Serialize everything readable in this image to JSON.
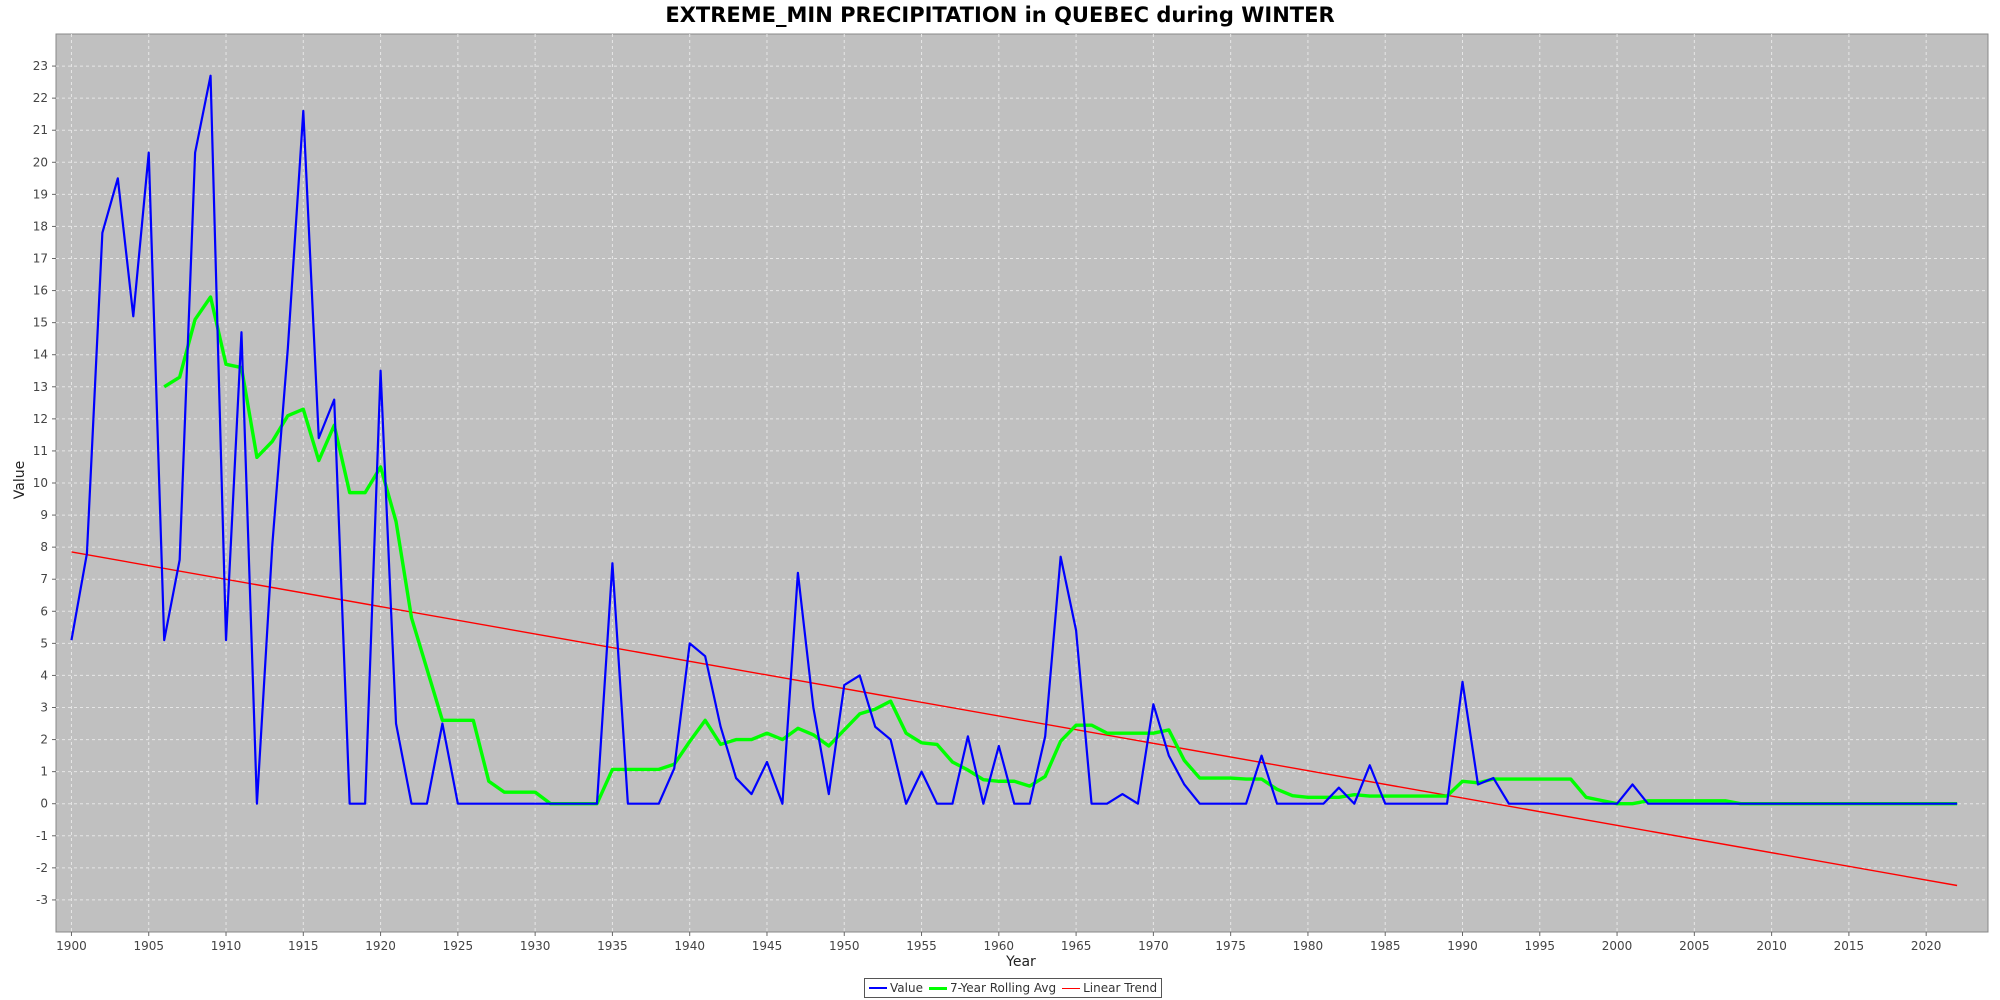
{
  "chart_data": {
    "type": "line",
    "title": "EXTREME_MIN PRECIPITATION in QUEBEC during WINTER",
    "xlabel": "Year",
    "ylabel": "Value",
    "xlim": [
      1899,
      2024
    ],
    "ylim": [
      -4,
      24
    ],
    "x_ticks": [
      1900,
      1905,
      1910,
      1915,
      1920,
      1925,
      1930,
      1935,
      1940,
      1945,
      1950,
      1955,
      1960,
      1965,
      1970,
      1975,
      1980,
      1985,
      1990,
      1995,
      2000,
      2005,
      2010,
      2015,
      2020
    ],
    "y_ticks": [
      -3,
      -2,
      -1,
      0,
      1,
      2,
      3,
      4,
      5,
      6,
      7,
      8,
      9,
      10,
      11,
      12,
      13,
      14,
      15,
      16,
      17,
      18,
      19,
      20,
      21,
      22,
      23
    ],
    "grid": true,
    "legend_position": "bottom-center",
    "background_color": "#c0c0c0",
    "series": [
      {
        "name": "Value",
        "color": "#0000ff",
        "x_start": 1900,
        "values": [
          5.1,
          7.8,
          17.8,
          19.5,
          15.2,
          20.3,
          5.1,
          7.6,
          20.3,
          22.7,
          5.1,
          14.7,
          0,
          8.1,
          14.2,
          21.6,
          11.4,
          12.6,
          0,
          0,
          13.5,
          2.5,
          0,
          0,
          2.5,
          0,
          0,
          0,
          0,
          0,
          0,
          0,
          0,
          0,
          0,
          7.5,
          0,
          0,
          0,
          1.1,
          5.0,
          4.6,
          2.4,
          0.8,
          0.3,
          1.3,
          0,
          7.2,
          3.0,
          0.3,
          3.7,
          4.0,
          2.4,
          2.0,
          0,
          1.0,
          0,
          0,
          2.1,
          0,
          1.8,
          0,
          0,
          2.1,
          7.7,
          5.4,
          0,
          0,
          0.3,
          0,
          3.1,
          1.5,
          0.6,
          0,
          0,
          0,
          0,
          1.5,
          0,
          0,
          0,
          0,
          0.5,
          0,
          1.2,
          0,
          0,
          0,
          0,
          0,
          3.8,
          0.6,
          0.8,
          0,
          0,
          0,
          0,
          0,
          0,
          0,
          0,
          0.6,
          0,
          0,
          0,
          0,
          0,
          0,
          0,
          0,
          0,
          0,
          0,
          0,
          0,
          0,
          0,
          0,
          0,
          0,
          0,
          0,
          0
        ]
      },
      {
        "name": "7-Year Rolling Avg",
        "color": "#00ff00",
        "x_start": 1906,
        "values": [
          13.0,
          13.3,
          15.1,
          15.8,
          13.7,
          13.6,
          10.8,
          11.3,
          12.1,
          12.3,
          10.7,
          11.8,
          9.7,
          9.7,
          10.5,
          8.8,
          5.8,
          4.2,
          2.6,
          2.6,
          2.6,
          0.7,
          0.36,
          0.36,
          0.36,
          0,
          0,
          0,
          0,
          1.07,
          1.07,
          1.07,
          1.07,
          1.23,
          1.94,
          2.6,
          1.85,
          2.0,
          2.0,
          2.2,
          2.0,
          2.35,
          2.15,
          1.8,
          2.3,
          2.8,
          2.95,
          3.2,
          2.2,
          1.9,
          1.85,
          1.3,
          1.05,
          0.75,
          0.7,
          0.7,
          0.55,
          0.85,
          1.95,
          2.45,
          2.45,
          2.2,
          2.2,
          2.2,
          2.2,
          2.3,
          1.35,
          0.8,
          0.8,
          0.8,
          0.77,
          0.77,
          0.45,
          0.25,
          0.2,
          0.2,
          0.2,
          0.28,
          0.24,
          0.24,
          0.24,
          0.24,
          0.24,
          0.24,
          0.7,
          0.65,
          0.77,
          0.77,
          0.77,
          0.77,
          0.77,
          0.77,
          0.2,
          0.1,
          0,
          0,
          0.09,
          0.09,
          0.09,
          0.09,
          0.09,
          0.09,
          0,
          0,
          0,
          0,
          0,
          0,
          0,
          0,
          0,
          0,
          0,
          0,
          0,
          0,
          0
        ]
      },
      {
        "name": "Linear Trend",
        "color": "#ff0000",
        "x": [
          1900,
          2022
        ],
        "values": [
          7.85,
          -2.55
        ]
      }
    ]
  }
}
